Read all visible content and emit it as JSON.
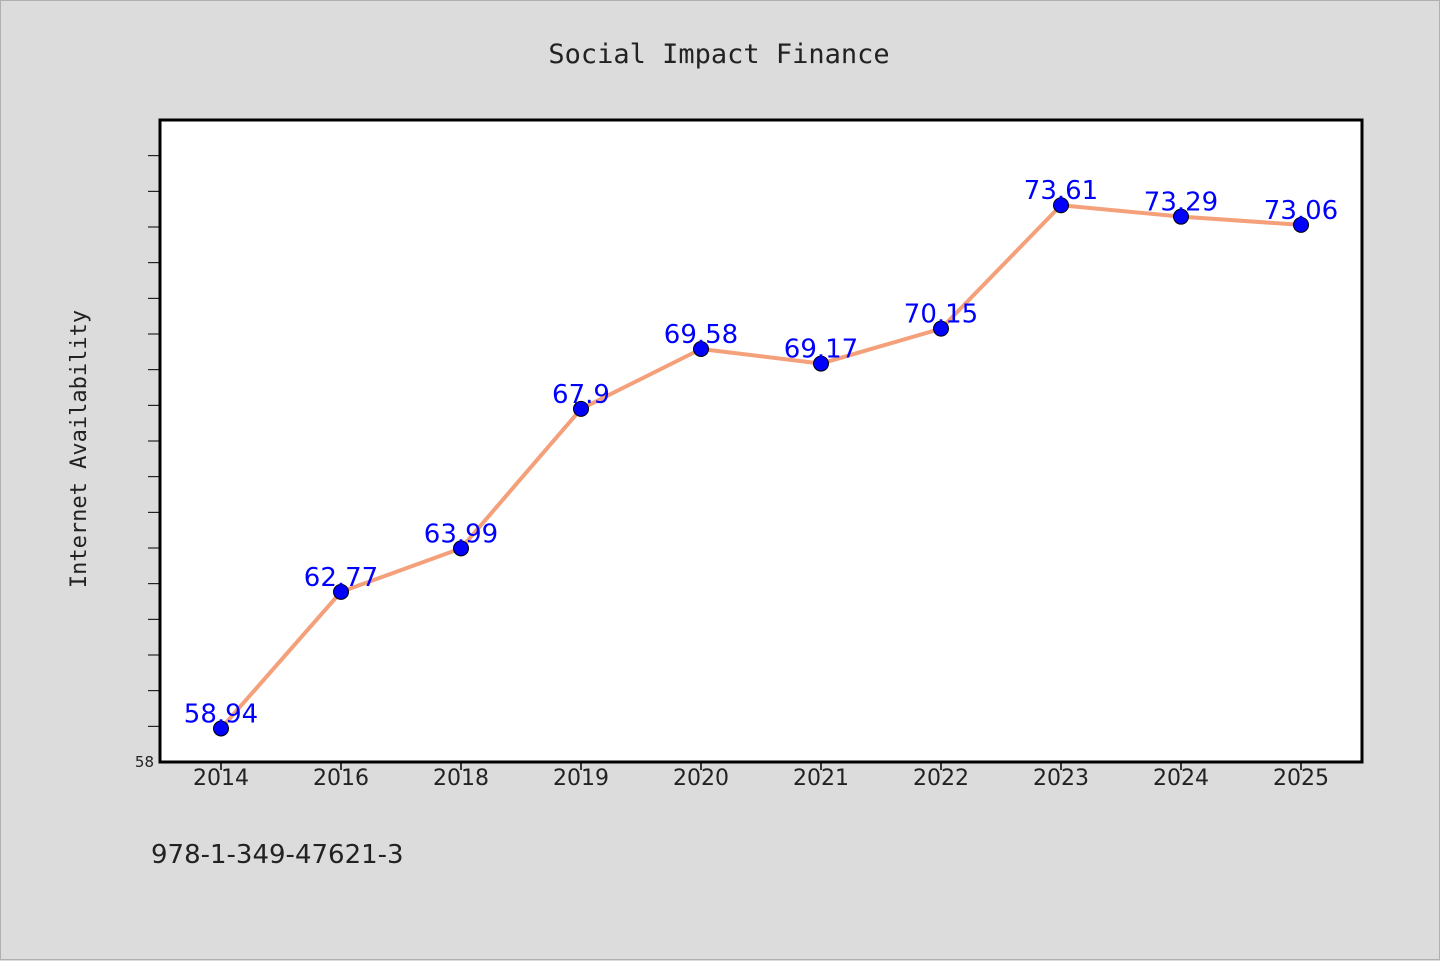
{
  "chart_data": {
    "type": "line",
    "title": "Social Impact Finance",
    "xlabel": "",
    "ylabel": "Internet Availability",
    "categories": [
      "2014",
      "2016",
      "2018",
      "2019",
      "2020",
      "2021",
      "2022",
      "2023",
      "2024",
      "2025"
    ],
    "series": [
      {
        "values": [
          58.94,
          62.77,
          63.99,
          67.9,
          69.58,
          69.17,
          70.15,
          73.61,
          73.29,
          73.06
        ],
        "data_labels": [
          "58.94",
          "62.77",
          "63.99",
          "67.9",
          "69.58",
          "69.17",
          "70.15",
          "73.61",
          "73.29",
          "73.06"
        ],
        "line_color": "#f4a07a",
        "marker_color": "#0000ff"
      }
    ],
    "ylim": [
      58,
      76
    ],
    "yticks": [
      "58"
    ],
    "minor_yticks": [
      59,
      60,
      61,
      62,
      63,
      64,
      65,
      66,
      67,
      68,
      69,
      70,
      71,
      72,
      73,
      74,
      75
    ],
    "grid": false,
    "legend": "none"
  },
  "footer": {
    "code": "978-1-349-47621-3"
  },
  "colors": {
    "background": "#dcdcdc",
    "plot_background": "#ffffff",
    "label_color": "#0000ff"
  }
}
